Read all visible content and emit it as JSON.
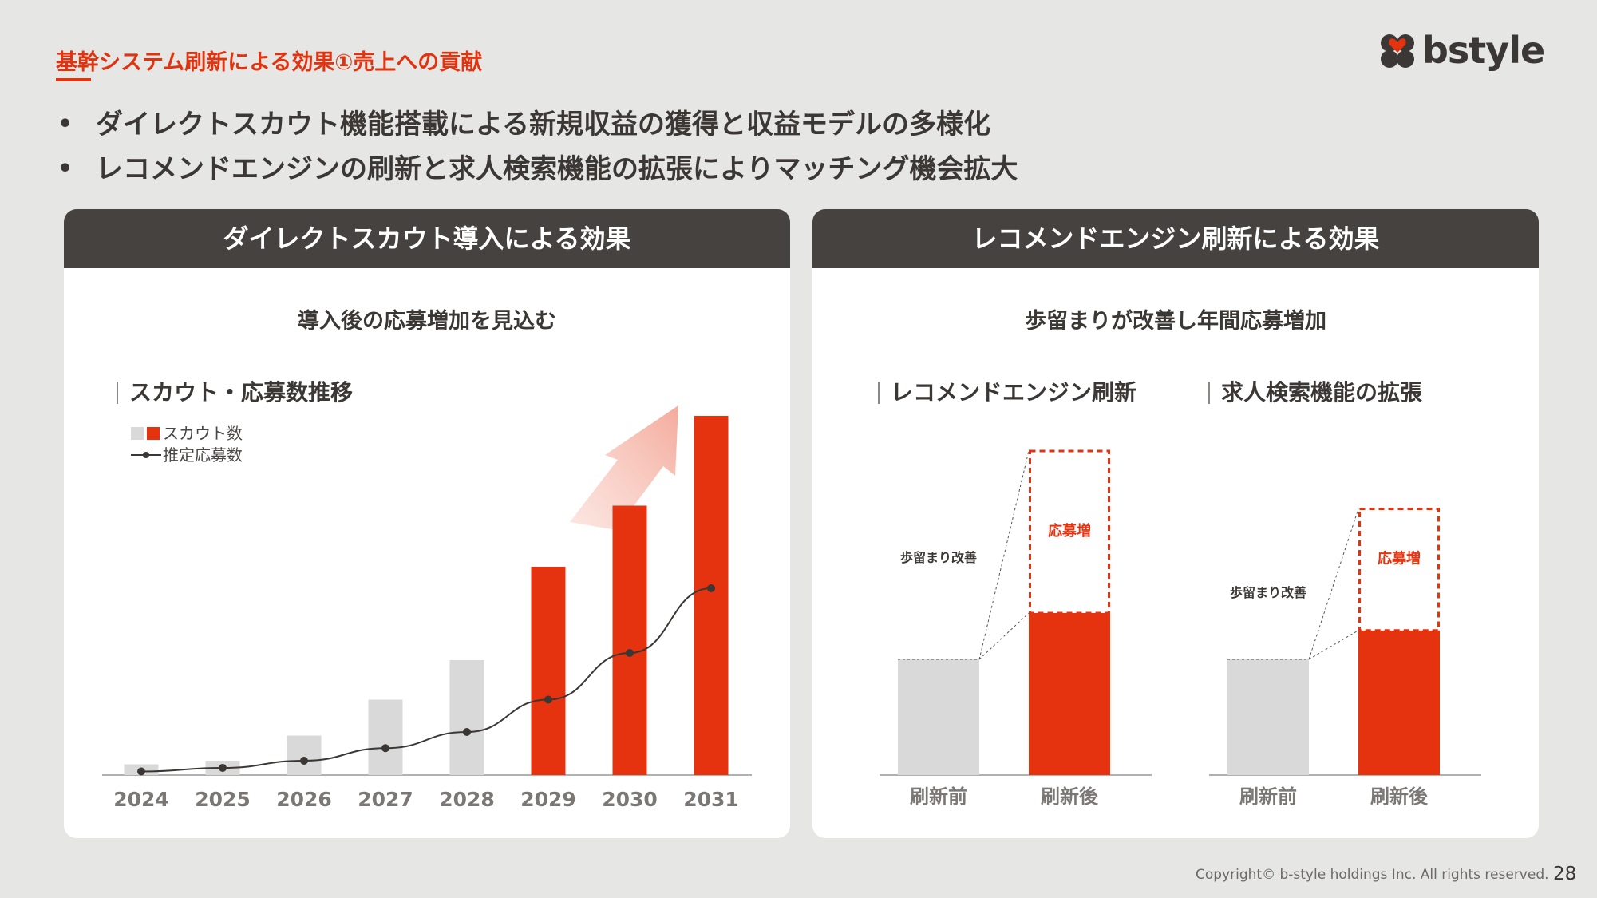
{
  "header": {
    "section_title": "基幹システム刷新による効果①売上への貢献",
    "logo_text": "bstyle"
  },
  "bullets": [
    "ダイレクトスカウト機能搭載による新規収益の獲得と収益モデルの多様化",
    "レコメンドエンジンの刷新と求人検索機能の拡張によりマッチング機会拡大"
  ],
  "left_panel": {
    "title": "ダイレクトスカウト導入による効果",
    "subtitle": "導入後の応募増加を見込む",
    "chart_label": "スカウト・応募数推移"
  },
  "right_panel": {
    "title": "レコメンドエンジン刷新による効果",
    "subtitle": "歩留まりが改善し年間応募増加",
    "chart_label_a": "レコメンドエンジン刷新",
    "chart_label_b": "求人検索機能の拡張"
  },
  "colors": {
    "accent": "#e5330f",
    "gray_bar": "#d9d9d9",
    "header_dark": "#46423f",
    "line": "#3b3735"
  },
  "chart_data": [
    {
      "type": "bar",
      "categories": [
        "2024",
        "2025",
        "2026",
        "2027",
        "2028",
        "2029",
        "2030",
        "2031"
      ],
      "series": [
        {
          "name": "スカウト数",
          "values": [
            3,
            4,
            11,
            21,
            32,
            58,
            75,
            100
          ]
        },
        {
          "name": "推定応募数",
          "type": "line",
          "values": [
            1,
            2,
            4,
            7.5,
            12,
            21,
            34,
            52
          ]
        }
      ],
      "highlight_from": "2029",
      "ylim": [
        0,
        100
      ],
      "legend": "top-left",
      "grid": false,
      "xlabel": "",
      "ylabel": ""
    },
    {
      "type": "bar",
      "categories": [
        "刷新前",
        "刷新後"
      ],
      "series": [
        {
          "name": "base",
          "values": [
            100,
            140
          ]
        },
        {
          "name": "応募増",
          "values": [
            0,
            140
          ]
        }
      ],
      "annotations": [
        "歩留まり改善",
        "応募増"
      ],
      "ylim": [
        0,
        300
      ]
    },
    {
      "type": "bar",
      "categories": [
        "刷新前",
        "刷新後"
      ],
      "series": [
        {
          "name": "base",
          "values": [
            100,
            125
          ]
        },
        {
          "name": "応募増",
          "values": [
            0,
            105
          ]
        }
      ],
      "annotations": [
        "歩留まり改善",
        "応募増"
      ],
      "ylim": [
        0,
        300
      ]
    }
  ],
  "footer": {
    "copyright": "Copyright© b-style holdings Inc. All rights reserved.",
    "page": "28"
  }
}
